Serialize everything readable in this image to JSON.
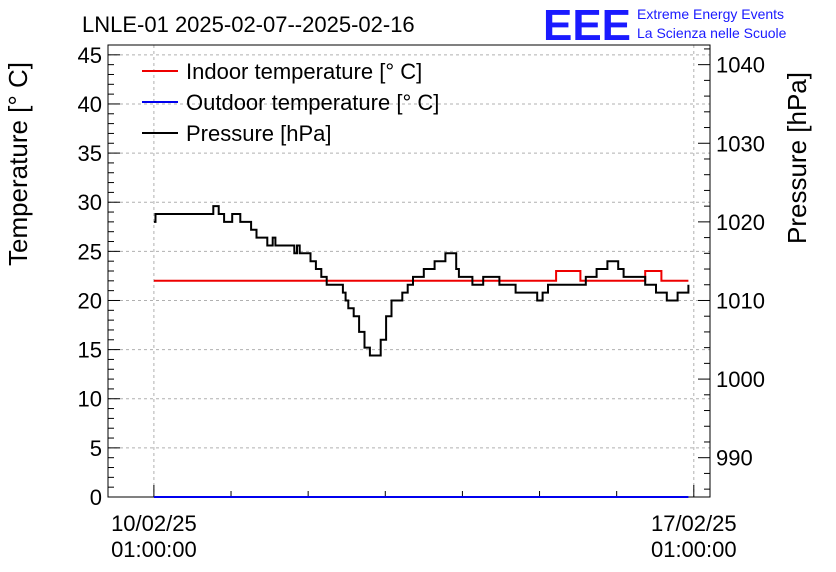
{
  "logo": {
    "mark": "EEE",
    "line1": "Extreme Energy Events",
    "line2": "La Scienza nelle Scuole",
    "color": "#1a1aff"
  },
  "chart_data": {
    "type": "line",
    "title": "LNLE-01 2025-02-07--2025-02-16",
    "ylabel": "Temperature [° C]",
    "y2label": "Pressure [hPa]",
    "ylim": [
      0,
      46
    ],
    "y2lim": [
      985,
      1042.5
    ],
    "yticks": [
      0,
      5,
      10,
      15,
      20,
      25,
      30,
      35,
      40,
      45
    ],
    "y2ticks": [
      990,
      1000,
      1010,
      1020,
      1030,
      1040
    ],
    "xlim": [
      -0.085,
      1.03
    ],
    "xticks": [
      {
        "x": 0,
        "line1": "10/02/25",
        "line2": "01:00:00"
      },
      {
        "x": 1,
        "line1": "17/02/25",
        "line2": "01:00:00"
      }
    ],
    "grid": true,
    "legend_position": "top-left",
    "colors": {
      "indoor": "#ee0000",
      "outdoor": "#0000ee",
      "pressure": "#000000"
    },
    "series": [
      {
        "name": "Indoor temperature [° C]",
        "axis": "left",
        "color": "#ee0000",
        "x": [
          0,
          0.74,
          0.745,
          0.785,
          0.79,
          0.885,
          0.89,
          0.905,
          0.91,
          0.93,
          0.94,
          0.99
        ],
        "values": [
          22,
          22,
          23,
          23,
          22,
          22,
          22,
          22,
          23,
          23,
          22,
          22
        ]
      },
      {
        "name": "Outdoor temperature [° C]",
        "axis": "left",
        "color": "#0000ee",
        "x": [
          0,
          0.99
        ],
        "values": [
          0,
          0
        ]
      },
      {
        "name": "Pressure [hPa]",
        "axis": "right",
        "color": "#000000",
        "x": [
          0,
          0.003,
          0.006,
          0.1,
          0.11,
          0.115,
          0.12,
          0.125,
          0.13,
          0.14,
          0.145,
          0.16,
          0.17,
          0.18,
          0.19,
          0.2,
          0.21,
          0.215,
          0.22,
          0.225,
          0.23,
          0.26,
          0.265,
          0.27,
          0.28,
          0.29,
          0.3,
          0.31,
          0.32,
          0.35,
          0.355,
          0.36,
          0.37,
          0.38,
          0.39,
          0.4,
          0.41,
          0.42,
          0.43,
          0.44,
          0.45,
          0.46,
          0.47,
          0.48,
          0.49,
          0.5,
          0.51,
          0.52,
          0.53,
          0.54,
          0.55,
          0.56,
          0.565,
          0.57,
          0.58,
          0.59,
          0.6,
          0.61,
          0.62,
          0.63,
          0.64,
          0.65,
          0.66,
          0.67,
          0.68,
          0.69,
          0.7,
          0.71,
          0.72,
          0.73,
          0.74,
          0.75,
          0.76,
          0.77,
          0.78,
          0.79,
          0.8,
          0.81,
          0.82,
          0.83,
          0.84,
          0.85,
          0.86,
          0.87,
          0.88,
          0.89,
          0.9,
          0.91,
          0.92,
          0.93,
          0.94,
          0.95,
          0.96,
          0.97,
          0.98,
          0.99
        ],
        "values": [
          1020,
          1021,
          1021,
          1021,
          1022,
          1022,
          1021,
          1021,
          1020,
          1020,
          1021,
          1020,
          1020,
          1019,
          1018,
          1018,
          1017,
          1017,
          1018,
          1017,
          1017,
          1016,
          1017,
          1016,
          1016,
          1015,
          1014,
          1013,
          1012,
          1011,
          1010,
          1009,
          1008,
          1006,
          1004,
          1003,
          1003,
          1005,
          1008,
          1010,
          1010,
          1011,
          1012,
          1013,
          1013,
          1014,
          1014,
          1015,
          1015,
          1016,
          1016,
          1014,
          1013,
          1013,
          1013,
          1012,
          1012,
          1013,
          1013,
          1013,
          1012,
          1012,
          1012,
          1011,
          1011,
          1011,
          1011,
          1010,
          1011,
          1012,
          1012,
          1012,
          1012,
          1012,
          1012,
          1012,
          1013,
          1013,
          1014,
          1014,
          1015,
          1015,
          1014,
          1013,
          1013,
          1013,
          1013,
          1012,
          1012,
          1011,
          1011,
          1010,
          1010,
          1011,
          1011,
          1012
        ]
      }
    ]
  }
}
